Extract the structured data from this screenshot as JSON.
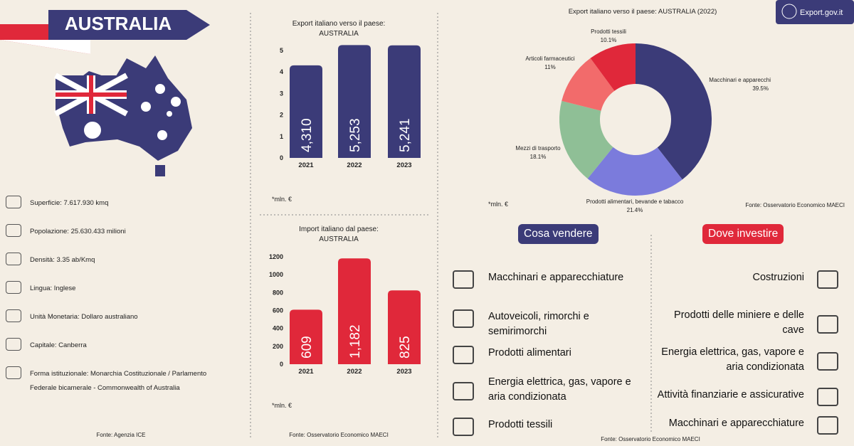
{
  "header": {
    "title": "AUSTRALIA",
    "logo": "Export.gov.it"
  },
  "facts": {
    "items": [
      "Superficie:  7.617.930 kmq",
      "Popolazione: 25.630.433 milioni",
      "Densità: 3.35 ab/Kmq",
      "Lingua: Inglese",
      "Unità Monetaria: Dollaro australiano",
      "Capitale: Canberra",
      "Forma istituzionale: Monarchia Costituzionale / Parlamento Federale bicamerale - Commonwealth of Australia"
    ],
    "source": "Fonte: Agenzia ICE"
  },
  "chart_data": [
    {
      "type": "bar",
      "title": "Export italiano verso il paese:",
      "subtitle": "AUSTRALIA",
      "categories": [
        "2021",
        "2022",
        "2023"
      ],
      "values": [
        4.31,
        5.253,
        5.241
      ],
      "value_labels": [
        "4,310",
        "5,253",
        "5,241"
      ],
      "color": "#3b3b78",
      "ylim": [
        0,
        5
      ],
      "yticks": [
        0,
        1,
        2,
        3,
        4,
        5
      ],
      "grid": false,
      "note": "*mln. €"
    },
    {
      "type": "bar",
      "title": "Import italiano dal paese:",
      "subtitle": "AUSTRALIA",
      "categories": [
        "2021",
        "2022",
        "2023"
      ],
      "values": [
        609,
        1182,
        825
      ],
      "value_labels": [
        "609",
        "1,182",
        "825"
      ],
      "color": "#e0283a",
      "ylim": [
        0,
        1200
      ],
      "yticks": [
        0,
        200,
        400,
        600,
        800,
        1000,
        1200
      ],
      "grid": false,
      "note": "*mln. €",
      "source": "Fonte: Osservatorio Economico MAECI"
    },
    {
      "type": "pie",
      "title": "Export italiano verso il paese: AUSTRALIA (2022)",
      "categories": [
        "Macchinari e apparecchi",
        "Prodotti alimentari, bevande e tabacco",
        "Mezzi di trasporto",
        "Articoli farmaceutici",
        "Prodotti tessili"
      ],
      "values": [
        39.5,
        21.4,
        18.1,
        11,
        10.1
      ],
      "value_labels": [
        "39.5%",
        "21.4%",
        "18.1%",
        "11%",
        "10.1%"
      ],
      "colors": [
        "#3b3b78",
        "#7b7bdc",
        "#8fbf96",
        "#f26b6b",
        "#e0283a"
      ],
      "note": "*mln. €",
      "source": "Fonte: Osservatorio Economico MAECI"
    }
  ],
  "sell": {
    "title": "Cosa vendere",
    "items": [
      "Macchinari e apparecchiature",
      "Autoveicoli, rimorchi e semirimorchi",
      "Prodotti alimentari",
      "Energia elettrica, gas, vapore e aria condizionata",
      "Prodotti tessili"
    ]
  },
  "invest": {
    "title": "Dove investire",
    "items": [
      "Costruzioni",
      "Prodotti delle miniere e delle cave",
      "Energia elettrica, gas, vapore e aria condizionata",
      "Attività finanziarie e assicurative",
      "Macchinari e apparecchiature"
    ]
  },
  "source": "Fonte: Osservatorio Economico MAECI"
}
